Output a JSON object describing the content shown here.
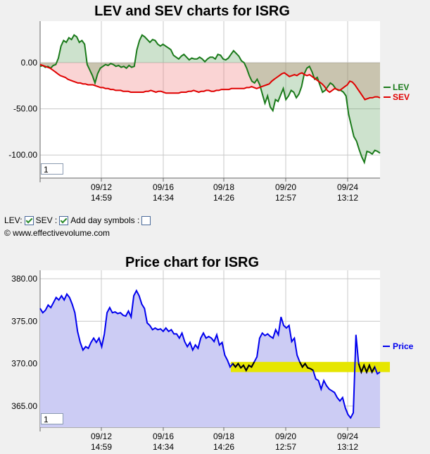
{
  "chart_data": [
    {
      "type": "line",
      "title": "LEV and SEV charts for ISRG",
      "ylim": [
        -125,
        45
      ],
      "yticks": [
        "0.00",
        "-50.00",
        "-100.00"
      ],
      "ytick_values": [
        0,
        -50,
        -100
      ],
      "xticks": [
        {
          "date": "09/12",
          "time": "14:59"
        },
        {
          "date": "09/16",
          "time": "14:34"
        },
        {
          "date": "09/18",
          "time": "14:26"
        },
        {
          "date": "09/20",
          "time": "12:57"
        },
        {
          "date": "09/24",
          "time": "13:12"
        }
      ],
      "series": [
        {
          "name": "LEV",
          "color": "#1a7a1a",
          "values": [
            -4,
            -3,
            -5,
            -4,
            -6,
            -3,
            -2,
            5,
            18,
            24,
            22,
            27,
            25,
            30,
            28,
            22,
            24,
            20,
            -2,
            -8,
            -14,
            -22,
            -12,
            -6,
            -4,
            -2,
            -3,
            -1,
            -2,
            -4,
            -3,
            -5,
            -4,
            -6,
            -3,
            -5,
            -4,
            14,
            24,
            30,
            28,
            25,
            22,
            25,
            24,
            20,
            18,
            20,
            18,
            16,
            14,
            8,
            6,
            4,
            7,
            9,
            6,
            3,
            5,
            4,
            4,
            6,
            4,
            1,
            4,
            6,
            6,
            4,
            9,
            8,
            4,
            3,
            5,
            9,
            13,
            10,
            7,
            2,
            0,
            -6,
            -14,
            -20,
            -22,
            -18,
            -24,
            -34,
            -44,
            -36,
            -48,
            -52,
            -40,
            -42,
            -35,
            -28,
            -40,
            -36,
            -30,
            -32,
            -38,
            -34,
            -26,
            -12,
            -6,
            -4,
            -10,
            -18,
            -16,
            -24,
            -32,
            -30,
            -26,
            -22,
            -24,
            -28,
            -30,
            -30,
            -32,
            -36,
            -56,
            -68,
            -80,
            -85,
            -94,
            -102,
            -108,
            -96,
            -97,
            -99,
            -95,
            -96,
            -98
          ]
        },
        {
          "name": "SEV",
          "color": "#e00000",
          "values": [
            -2,
            -3,
            -4,
            -5,
            -6,
            -8,
            -10,
            -12,
            -14,
            -15,
            -16,
            -18,
            -19,
            -20,
            -21,
            -22,
            -22,
            -23,
            -23,
            -24,
            -24,
            -24,
            -25,
            -26,
            -27,
            -27,
            -28,
            -28,
            -29,
            -29,
            -30,
            -30,
            -30,
            -31,
            -31,
            -31,
            -32,
            -32,
            -32,
            -32,
            -32,
            -32,
            -31,
            -31,
            -30,
            -31,
            -32,
            -31,
            -31,
            -32,
            -33,
            -33,
            -33,
            -33,
            -33,
            -33,
            -32,
            -32,
            -32,
            -31,
            -31,
            -30,
            -31,
            -32,
            -31,
            -31,
            -30,
            -30,
            -31,
            -31,
            -30,
            -30,
            -29,
            -29,
            -29,
            -29,
            -28,
            -28,
            -28,
            -28,
            -28,
            -28,
            -27,
            -27,
            -26,
            -27,
            -28,
            -27,
            -26,
            -25,
            -24,
            -23,
            -20,
            -18,
            -16,
            -14,
            -12,
            -11,
            -13,
            -15,
            -14,
            -13,
            -14,
            -12,
            -11,
            -13,
            -14,
            -13,
            -15,
            -17,
            -19,
            -21,
            -23,
            -26,
            -30,
            -32,
            -30,
            -28,
            -29,
            -30,
            -28,
            -26,
            -24,
            -20,
            -21,
            -24,
            -28,
            -32,
            -36,
            -40,
            -39,
            -38,
            -38,
            -37,
            -37,
            -38
          ]
        }
      ],
      "legend": "right"
    },
    {
      "type": "line",
      "title": "Price chart for ISRG",
      "ylim": [
        362.5,
        381
      ],
      "yticks": [
        "380.00",
        "375.00",
        "370.00",
        "365.00"
      ],
      "ytick_values": [
        380,
        375,
        370,
        365
      ],
      "xticks": [
        {
          "date": "09/12",
          "time": "14:59"
        },
        {
          "date": "09/16",
          "time": "14:34"
        },
        {
          "date": "09/18",
          "time": "14:26"
        },
        {
          "date": "09/20",
          "time": "12:57"
        },
        {
          "date": "09/24",
          "time": "13:12"
        }
      ],
      "series": [
        {
          "name": "Price",
          "color": "#0000ee",
          "values": [
            376.5,
            376.0,
            376.3,
            376.9,
            376.6,
            377.2,
            377.8,
            377.5,
            378.0,
            377.5,
            378.2,
            377.8,
            377.0,
            376.0,
            373.8,
            372.5,
            371.6,
            372.0,
            371.8,
            372.5,
            373.0,
            372.5,
            373.0,
            372.0,
            373.5,
            376.0,
            376.6,
            376.0,
            376.1,
            375.9,
            376.0,
            375.7,
            375.6,
            376.2,
            375.5,
            378.0,
            378.6,
            378.0,
            377.0,
            376.5,
            374.8,
            374.5,
            374.0,
            374.2,
            374.0,
            374.1,
            373.8,
            374.2,
            373.8,
            374.0,
            373.5,
            373.5,
            373.0,
            373.6,
            372.6,
            372.0,
            372.5,
            371.6,
            372.2,
            371.8,
            373.0,
            373.6,
            373.0,
            373.2,
            373.0,
            372.6,
            373.4,
            372.2,
            372.5,
            371.0,
            370.4,
            369.6,
            370.0,
            369.6,
            370.0,
            369.5,
            369.8,
            369.2,
            369.8,
            369.6,
            370.2,
            370.8,
            373.0,
            373.6,
            373.3,
            373.5,
            373.2,
            373.0,
            374.0,
            373.4,
            375.5,
            374.5,
            374.2,
            374.5,
            372.6,
            373.0,
            371.0,
            370.2,
            369.6,
            370.0,
            369.5,
            369.4,
            369.2,
            368.2,
            368.0,
            367.0,
            368.0,
            367.4,
            367.0,
            366.8,
            366.6,
            366.0,
            365.6,
            366.0,
            364.8,
            364.0,
            363.6,
            364.2,
            373.4,
            370.0,
            369.0,
            369.8,
            369.0,
            369.8,
            369.0,
            369.6,
            368.8,
            369.0
          ]
        }
      ],
      "legend": "right",
      "highlight_band": [
        369.0,
        370.2
      ]
    }
  ],
  "controls": {
    "lev_label": "LEV:",
    "sev_label": "SEV :",
    "day_symbols_label": "Add day symbols :"
  },
  "copyright": "© www.effectivevolume.com",
  "zoom_top": "1",
  "zoom_bottom": "1"
}
